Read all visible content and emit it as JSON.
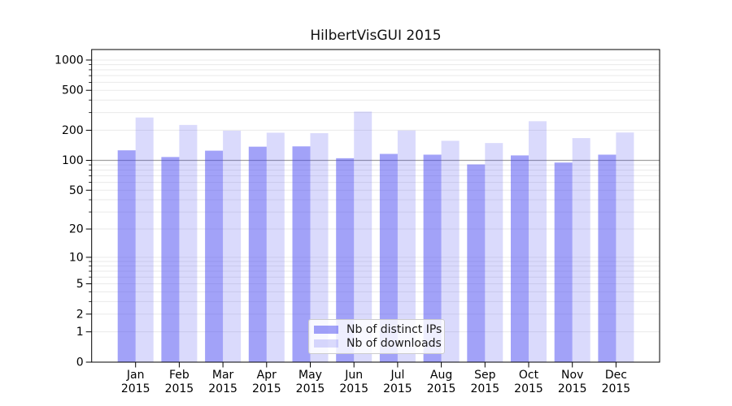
{
  "chart_data": {
    "type": "bar",
    "title": "HilbertVisGUI 2015",
    "categories": [
      "Jan",
      "Feb",
      "Mar",
      "Apr",
      "May",
      "Jun",
      "Jul",
      "Aug",
      "Sep",
      "Oct",
      "Nov",
      "Dec"
    ],
    "year": "2015",
    "series": [
      {
        "name": "Nb of distinct IPs",
        "color": "rgba(70,70,242,0.5)",
        "values": [
          126,
          108,
          125,
          137,
          138,
          105,
          116,
          114,
          91,
          112,
          95,
          114
        ]
      },
      {
        "name": "Nb of downloads",
        "color": "rgba(70,70,242,0.2)",
        "values": [
          268,
          226,
          198,
          189,
          187,
          307,
          199,
          157,
          149,
          246,
          167,
          190
        ]
      }
    ],
    "xlabel": "",
    "ylabel": "",
    "yscale": "log10(1+x)",
    "ylim": [
      0,
      1270
    ],
    "yticks": [
      0,
      1,
      2,
      5,
      10,
      20,
      50,
      100,
      200,
      500,
      1000
    ],
    "yticks_minor": [
      3,
      4,
      6,
      7,
      8,
      9,
      30,
      40,
      60,
      70,
      80,
      90,
      300,
      400,
      600,
      700,
      800,
      900
    ],
    "reference_line_value": 100,
    "grid": "on",
    "legend_position": "lower-center",
    "colors": {
      "grid": "#eaeaea",
      "reference_line": "#a0a0a0",
      "spine": "#000000",
      "tick_label": "#000000"
    }
  }
}
